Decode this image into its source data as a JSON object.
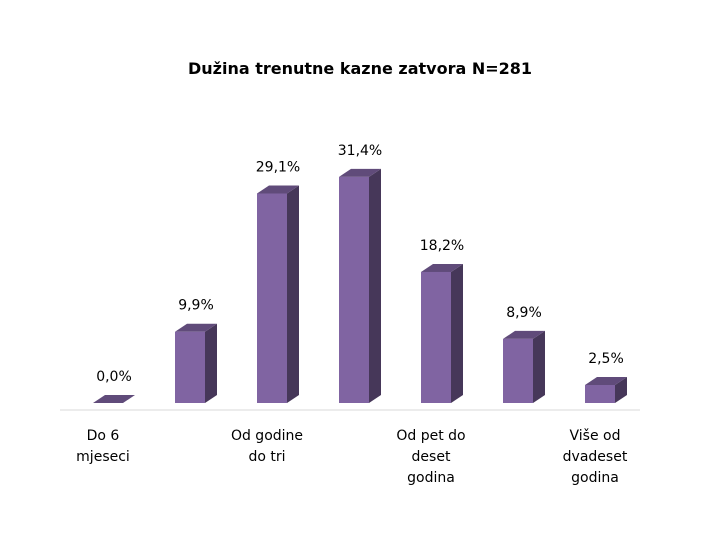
{
  "chart_data": {
    "type": "bar",
    "title": "Dužina trenutne kazne zatvora N=281",
    "categories": [
      "Do 6 mjeseci",
      null,
      "Od godine do tri",
      null,
      "Od pet do deset godina",
      null,
      "Više od dvadeset godina"
    ],
    "values": [
      0,
      9.9,
      29.1,
      31.4,
      18.2,
      8.9,
      2.5
    ],
    "value_labels": [
      "0,0%",
      "9,9%",
      "29,1%",
      "31,4%",
      "18,2%",
      "8,9%",
      "2,5%"
    ],
    "color": "#8064a2"
  }
}
